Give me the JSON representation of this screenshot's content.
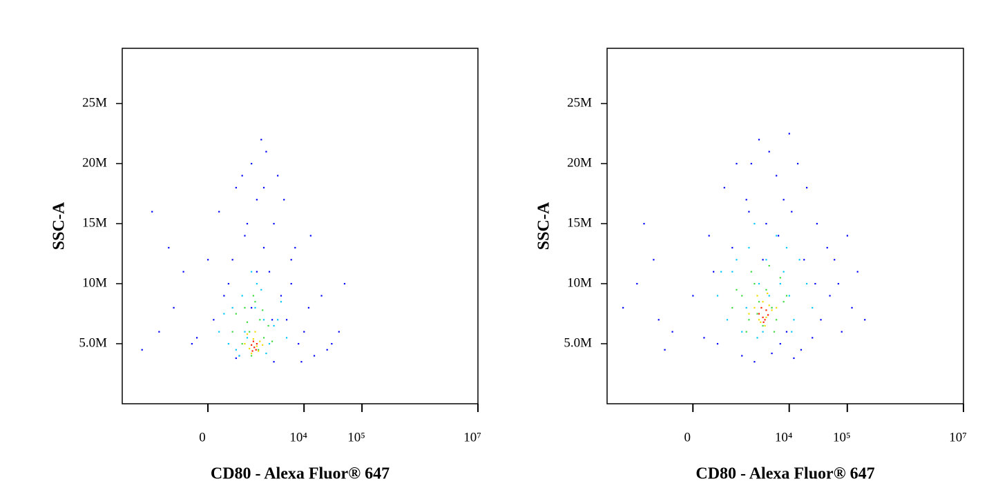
{
  "chart_data": [
    {
      "type": "scatter",
      "xlabel": "CD80 - Alexa Fluor® 647",
      "ylabel": "SSC-A",
      "xscale": "biexponential",
      "xlim": [
        -6600,
        10000000
      ],
      "ylim": [
        0,
        29600000
      ],
      "xticks": [
        0,
        {
          "value": 10000,
          "label": "10⁴"
        },
        {
          "value": 100000,
          "label": "10⁵"
        },
        {
          "value": 10000000,
          "label": "10⁷"
        }
      ],
      "yticks": [
        {
          "value": 5000000,
          "label": "5.0M"
        },
        {
          "value": 10000000,
          "label": "10M"
        },
        {
          "value": 15000000,
          "label": "15M"
        },
        {
          "value": 20000000,
          "label": "20M"
        },
        {
          "value": 25000000,
          "label": "25M"
        }
      ],
      "series": [
        {
          "color": "#0000ff",
          "x": [
            -3000,
            -1500,
            -800,
            -300,
            0,
            200,
            400,
            600,
            900,
            1200,
            1500,
            2000,
            2500,
            3000,
            4000,
            5000,
            6000,
            8000,
            10000,
            12000,
            15000,
            20000,
            30000,
            50000,
            -2000,
            -500,
            100,
            700,
            1800,
            3500,
            7000,
            9000,
            300,
            1000,
            2200,
            4500,
            -1000,
            1500,
            600,
            2800,
            13000,
            25000,
            40000,
            800,
            1200,
            500,
            3000,
            6000,
            -200,
            2000
          ],
          "y": [
            4500000.0,
            6000000.0,
            8000000.0,
            5000000.0,
            12000000.0,
            16000000.0,
            10000000.0,
            18000000.0,
            14000000.0,
            20000000.0,
            17000000.0,
            13000000.0,
            11000000.0,
            15000000.0,
            9000000.0,
            7000000.0,
            12000000.0,
            5000000.0,
            6000000.0,
            8000000.0,
            4000000.0,
            9000000.0,
            5000000.0,
            10000000.0,
            16000000.0,
            11000000.0,
            7000000.0,
            4000000.0,
            22000000.0,
            19000000.0,
            13000000.0,
            3500000.0,
            9000000.0,
            15000000.0,
            21000000.0,
            17000000.0,
            13000000.0,
            11000000.0,
            3800000.0,
            7000000.0,
            14000000.0,
            4500000.0,
            6000000.0,
            19000000.0,
            8000000.0,
            12000000.0,
            3500000.0,
            10000000.0,
            5500000.0,
            18000000.0
          ]
        },
        {
          "color": "#00c8ff",
          "x": [
            200,
            500,
            800,
            1000,
            1500,
            2000,
            3000,
            4000,
            600,
            1200,
            2500,
            300,
            900,
            1800,
            5000,
            700,
            1400,
            2200,
            400,
            3500
          ],
          "y": [
            6000000.0,
            8000000.0,
            9000000.0,
            5500000.0,
            10000000.0,
            7000000.0,
            6500000.0,
            8500000.0,
            4500000.0,
            11000000.0,
            5000000.0,
            7500000.0,
            6000000.0,
            9500000.0,
            5500000.0,
            4000000.0,
            8000000.0,
            4200000.0,
            5000000.0,
            7000000.0
          ]
        },
        {
          "color": "#3cdc3c",
          "x": [
            600,
            900,
            1100,
            1400,
            1700,
            2000,
            2400,
            800,
            1300,
            1600,
            1000,
            2800,
            500,
            1900,
            1200
          ],
          "y": [
            7500000.0,
            8000000.0,
            6000000.0,
            8500000.0,
            7000000.0,
            5500000.0,
            6500000.0,
            5000000.0,
            9000000.0,
            4500000.0,
            6800000.0,
            5200000.0,
            6000000.0,
            7800000.0,
            4000000.0
          ]
        },
        {
          "color": "#f0dc00",
          "x": [
            900,
            1100,
            1300,
            1500,
            1700,
            1200,
            1000,
            1600,
            1400,
            1900
          ],
          "y": [
            5000000.0,
            4600000.0,
            5400000.0,
            4800000.0,
            5200000.0,
            4200000.0,
            5800000.0,
            4400000.0,
            6000000.0,
            4900000.0
          ]
        },
        {
          "color": "#ff2000",
          "x": [
            1200,
            1350,
            1500,
            1300,
            1450,
            1250
          ],
          "y": [
            4900000.0,
            4700000.0,
            5000000.0,
            5200000.0,
            4500000.0,
            4400000.0
          ]
        }
      ]
    },
    {
      "type": "scatter",
      "xlabel": "CD80 - Alexa Fluor® 647",
      "ylabel": "SSC-A",
      "xscale": "biexponential",
      "xlim": [
        -6600,
        10000000
      ],
      "ylim": [
        0,
        29600000
      ],
      "xticks": [
        0,
        {
          "value": 10000,
          "label": "10⁴"
        },
        {
          "value": 100000,
          "label": "10⁵"
        },
        {
          "value": 10000000,
          "label": "10⁷"
        }
      ],
      "yticks": [
        {
          "value": 5000000,
          "label": "5.0M"
        },
        {
          "value": 10000000,
          "label": "10M"
        },
        {
          "value": 15000000,
          "label": "15M"
        },
        {
          "value": 20000000,
          "label": "20M"
        },
        {
          "value": 25000000,
          "label": "25M"
        }
      ],
      "series": [
        {
          "color": "#0000ff",
          "x": [
            -3500,
            -2000,
            -1000,
            -400,
            0,
            300,
            700,
            1200,
            2000,
            3000,
            4500,
            6000,
            8000,
            10000,
            14000,
            20000,
            30000,
            45000,
            70000,
            120000,
            200000,
            -1500,
            -600,
            500,
            1500,
            2500,
            3500,
            5000,
            7000,
            9000,
            12000,
            16000,
            25000,
            35000,
            60000,
            100000,
            400,
            1000,
            1800,
            4000,
            6500,
            11000,
            18000,
            28000,
            50000,
            80000,
            -800,
            200,
            2200,
            150000
          ],
          "y": [
            8000000.0,
            10000000.0,
            12000000.0,
            6000000.0,
            9000000.0,
            14000000.0,
            18000000.0,
            20000000.0,
            16000000.0,
            22000000.0,
            21000000.0,
            19000000.0,
            17000000.0,
            22500000.0,
            20000000.0,
            18000000.0,
            15000000.0,
            13000000.0,
            10000000.0,
            8000000.0,
            7000000.0,
            15000000.0,
            4500000.0,
            5000000.0,
            4000000.0,
            3500000.0,
            12000000.0,
            4200000.0,
            5000000.0,
            6000000.0,
            3800000.0,
            4500000.0,
            5500000.0,
            7000000.0,
            12000000.0,
            14000000.0,
            11000000.0,
            13000000.0,
            17000000.0,
            15000000.0,
            14000000.0,
            16000000.0,
            12000000.0,
            10000000.0,
            9000000.0,
            6000000.0,
            7000000.0,
            5500000.0,
            20000000.0,
            11000000.0
          ]
        },
        {
          "color": "#00c8ff",
          "x": [
            500,
            1000,
            1500,
            2000,
            3000,
            4000,
            5000,
            6000,
            8000,
            10000,
            12000,
            15000,
            20000,
            800,
            1200,
            2500,
            3500,
            7000,
            9000,
            600,
            1800,
            2800,
            4500,
            11000,
            25000
          ],
          "y": [
            9000000.0,
            11000000.0,
            6000000.0,
            13000000.0,
            10000000.0,
            12000000.0,
            8000000.0,
            14000000.0,
            11000000.0,
            9000000.0,
            7000000.0,
            12000000.0,
            10000000.0,
            7000000.0,
            12000000.0,
            15000000.0,
            6000000.0,
            10000000.0,
            13000000.0,
            11000000.0,
            8000000.0,
            5500000.0,
            9000000.0,
            6000000.0,
            8000000.0
          ]
        },
        {
          "color": "#3cdc3c",
          "x": [
            1000,
            1500,
            2000,
            2500,
            3000,
            3500,
            4000,
            5000,
            6000,
            7000,
            8000,
            1800,
            2200,
            2800,
            4500,
            5500,
            9000,
            1200
          ],
          "y": [
            8000000.0,
            9000000.0,
            7000000.0,
            10000000.0,
            8500000.0,
            6500000.0,
            9500000.0,
            8000000.0,
            7000000.0,
            10500000.0,
            8500000.0,
            6000000.0,
            11000000.0,
            7500000.0,
            11500000.0,
            6000000.0,
            9000000.0,
            9500000.0
          ]
        },
        {
          "color": "#f0dc00",
          "x": [
            2000,
            2500,
            3000,
            3500,
            4000,
            4500,
            5000,
            2800,
            3800,
            6000,
            3200,
            4200
          ],
          "y": [
            7500000.0,
            8000000.0,
            7000000.0,
            8500000.0,
            7200000.0,
            8200000.0,
            7800000.0,
            9000000.0,
            6500000.0,
            8000000.0,
            6800000.0,
            9200000.0
          ]
        },
        {
          "color": "#ff2000",
          "x": [
            3000,
            3500,
            4000,
            3300,
            3800,
            4300,
            3600
          ],
          "y": [
            7500000.0,
            7200000.0,
            7800000.0,
            8000000.0,
            7000000.0,
            7400000.0,
            6800000.0
          ]
        }
      ]
    }
  ]
}
